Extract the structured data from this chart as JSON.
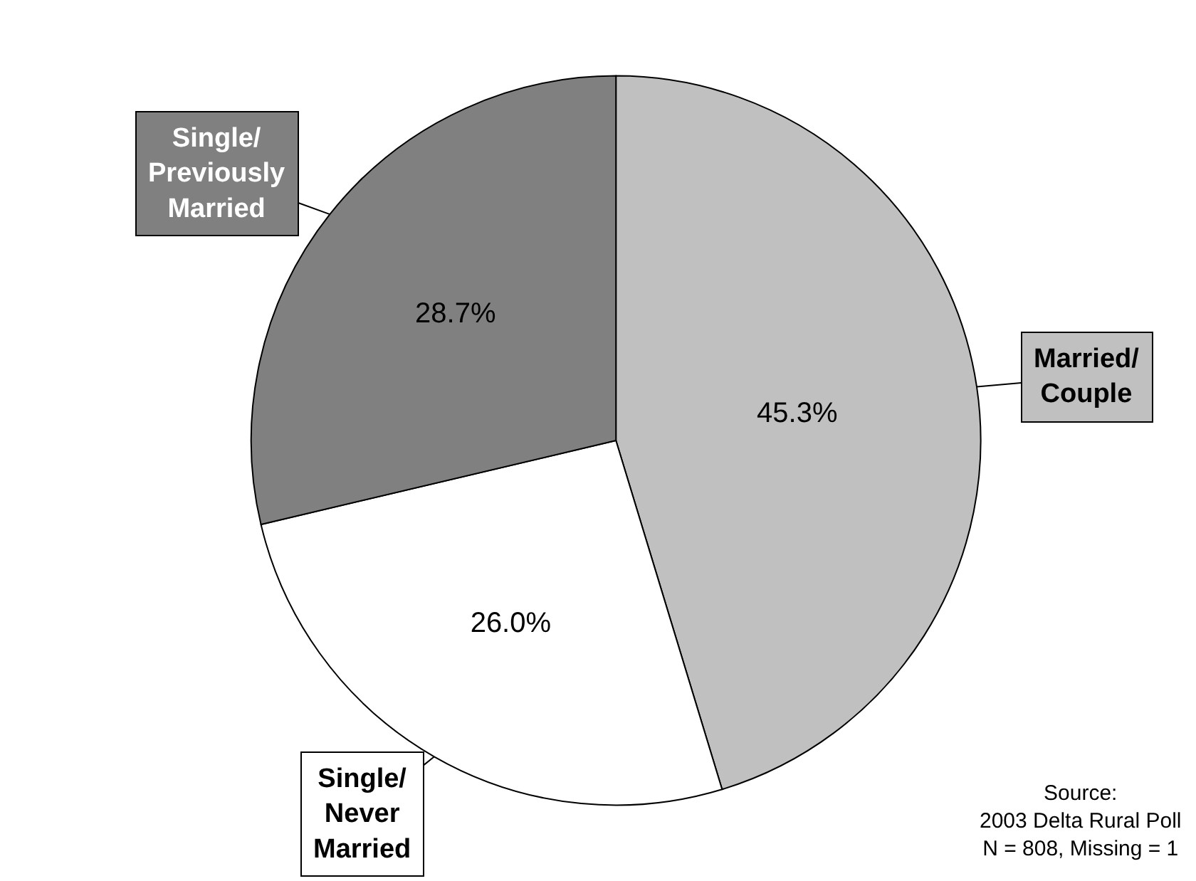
{
  "chart_data": {
    "type": "pie",
    "categories": [
      "Married/ Couple",
      "Single/ Never Married",
      "Single/ Previously Married"
    ],
    "values": [
      45.3,
      26.0,
      28.7
    ],
    "colors": [
      "#c0c0c0",
      "#ffffff",
      "#808080"
    ],
    "value_labels": [
      "45.3%",
      "26.0%",
      "28.7%"
    ],
    "annotations": [
      "Source:\n2003 Delta Rural Poll\nN = 808, Missing = 1"
    ]
  }
}
